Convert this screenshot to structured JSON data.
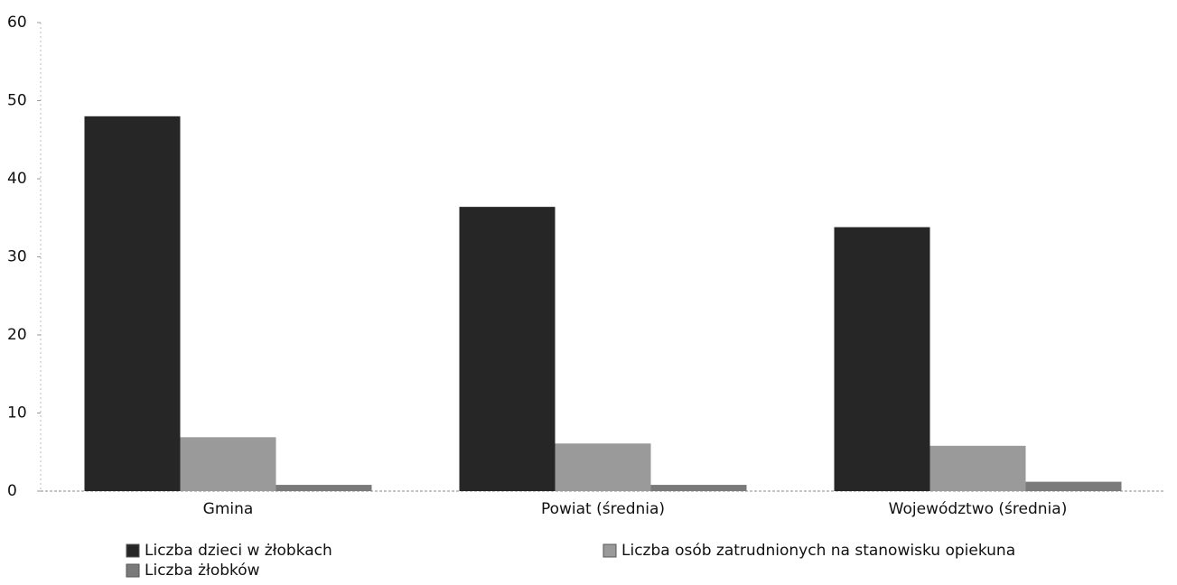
{
  "chart_data": {
    "type": "bar",
    "categories": [
      "Gmina",
      "Powiat (średnia)",
      "Województwo (średnia)"
    ],
    "series": [
      {
        "name": "Liczba dzieci w żłobkach",
        "color": "#262626",
        "values": [
          48,
          36.4,
          33.8
        ]
      },
      {
        "name": "Liczba osób zatrudnionych na stanowisku opiekuna",
        "color": "#9a9a9a",
        "values": [
          6.9,
          6.1,
          5.8
        ]
      },
      {
        "name": "Liczba żłobków",
        "color": "#7a7a7a",
        "values": [
          0.8,
          0.8,
          1.2
        ]
      }
    ],
    "ylim": [
      0,
      60
    ],
    "yticks": [
      0,
      10,
      20,
      30,
      40,
      50,
      60
    ],
    "grid": false,
    "legend": "bottom"
  }
}
